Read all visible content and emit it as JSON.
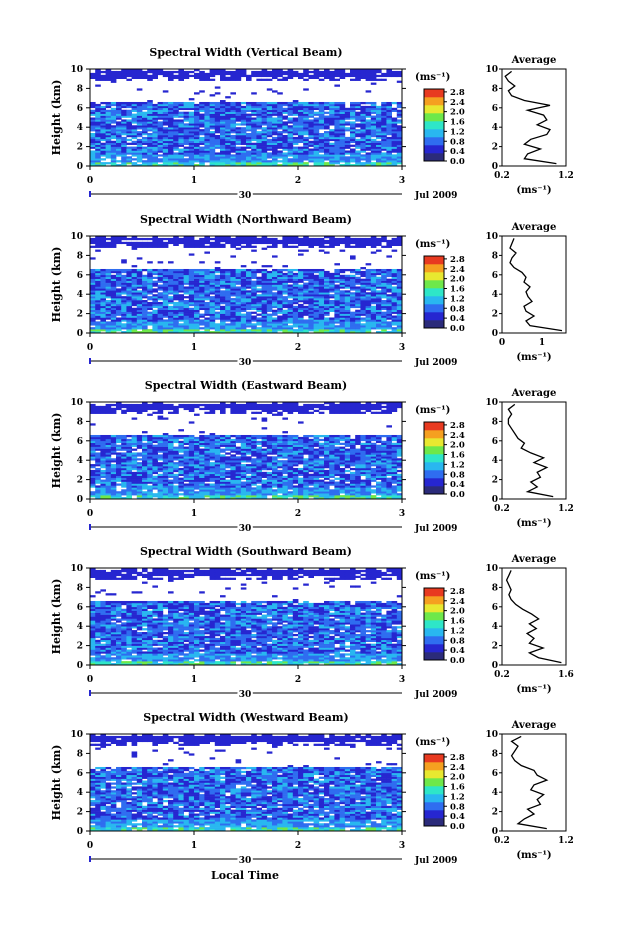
{
  "figure": {
    "xlabel": "Local Time",
    "colorbar_unit": "(ms⁻¹)",
    "colorbar_ticks": [
      "0.0",
      "0.4",
      "0.8",
      "1.2",
      "1.6",
      "2.0",
      "2.4",
      "2.8"
    ],
    "avg_title": "Average",
    "avg_unit": "(ms⁻¹)",
    "ylabel": "Height (km)",
    "date_day": "30",
    "date_month": "Jul 2009",
    "x_ticks": [
      "0",
      "1",
      "2",
      "3"
    ],
    "y_ticks": [
      "0",
      "2",
      "4",
      "6",
      "8",
      "10"
    ]
  },
  "colors": {
    "c0": "#2b2b7a",
    "c1": "#2626d0",
    "c2": "#2f6df0",
    "c3": "#29b7f0",
    "c4": "#2ee6c8",
    "c5": "#6ee84a",
    "c6": "#e8e830",
    "c7": "#f5a020",
    "c8": "#e83a20"
  },
  "chart_data": [
    {
      "type": "heatmap",
      "title": "Spectral Width (Vertical Beam)",
      "xlim": [
        0,
        3
      ],
      "ylim": [
        0,
        10
      ],
      "clim": [
        0,
        2.8
      ],
      "avg_xlim": [
        0.2,
        1.2
      ],
      "avg_ticks": [
        "0.2",
        "1.2"
      ],
      "avg_profile": {
        "height": [
          0.0,
          0.5,
          1.0,
          1.5,
          2.0,
          2.5,
          3.0,
          3.5,
          4.0,
          4.5,
          5.0,
          5.5,
          6.0,
          6.5,
          7.0,
          7.5,
          8.0,
          8.5,
          9.0,
          9.5
        ],
        "value": [
          1.05,
          0.55,
          0.6,
          0.8,
          0.55,
          0.65,
          0.9,
          0.95,
          0.75,
          0.9,
          0.85,
          0.6,
          0.95,
          0.55,
          0.35,
          0.3,
          0.4,
          0.3,
          0.25,
          0.35
        ]
      }
    },
    {
      "type": "heatmap",
      "title": "Spectral Width (Northward Beam)",
      "xlim": [
        0,
        3
      ],
      "ylim": [
        0,
        10
      ],
      "clim": [
        0,
        2.8
      ],
      "avg_xlim": [
        0,
        1.6
      ],
      "avg_ticks": [
        "0",
        "1"
      ],
      "avg_profile": {
        "height": [
          0.0,
          0.5,
          1.0,
          1.5,
          2.0,
          2.5,
          3.0,
          3.5,
          4.0,
          4.5,
          5.0,
          5.5,
          6.0,
          6.5,
          7.0,
          7.5,
          8.0,
          8.5,
          9.0,
          9.5
        ],
        "value": [
          1.5,
          0.7,
          0.6,
          0.8,
          0.6,
          0.55,
          0.75,
          0.65,
          0.6,
          0.7,
          0.55,
          0.6,
          0.5,
          0.3,
          0.2,
          0.25,
          0.35,
          0.2,
          0.25,
          0.3
        ]
      }
    },
    {
      "type": "heatmap",
      "title": "Spectral Width (Eastward Beam)",
      "xlim": [
        0,
        3
      ],
      "ylim": [
        0,
        10
      ],
      "clim": [
        0,
        2.8
      ],
      "avg_xlim": [
        0.2,
        1.2
      ],
      "avg_ticks": [
        "0.2",
        "1.2"
      ],
      "avg_profile": {
        "height": [
          0.0,
          0.5,
          1.0,
          1.5,
          2.0,
          2.5,
          3.0,
          3.5,
          4.0,
          4.5,
          5.0,
          5.5,
          6.0,
          6.5,
          7.0,
          7.5,
          8.0,
          8.5,
          9.0,
          9.5
        ],
        "value": [
          1.0,
          0.6,
          0.75,
          0.65,
          0.8,
          0.75,
          0.9,
          0.7,
          0.85,
          0.65,
          0.5,
          0.55,
          0.45,
          0.4,
          0.35,
          0.3,
          0.3,
          0.35,
          0.3,
          0.4
        ]
      }
    },
    {
      "type": "heatmap",
      "title": "Spectral Width (Southward Beam)",
      "xlim": [
        0,
        3
      ],
      "ylim": [
        0,
        10
      ],
      "clim": [
        0,
        2.8
      ],
      "avg_xlim": [
        0.2,
        1.6
      ],
      "avg_ticks": [
        "0.2",
        "1.6"
      ],
      "avg_profile": {
        "height": [
          0.0,
          0.5,
          1.0,
          1.5,
          2.0,
          2.5,
          3.0,
          3.5,
          4.0,
          4.5,
          5.0,
          5.5,
          6.0,
          6.5,
          7.0,
          7.5,
          8.0,
          8.5,
          9.0,
          9.5
        ],
        "value": [
          1.5,
          1.0,
          0.8,
          1.1,
          0.8,
          0.9,
          0.75,
          0.95,
          0.8,
          1.0,
          0.85,
          0.65,
          0.5,
          0.4,
          0.35,
          0.4,
          0.35,
          0.3,
          0.35,
          0.4
        ]
      }
    },
    {
      "type": "heatmap",
      "title": "Spectral Width (Westward Beam)",
      "xlim": [
        0,
        3
      ],
      "ylim": [
        0,
        10
      ],
      "clim": [
        0,
        2.8
      ],
      "avg_xlim": [
        0.2,
        1.2
      ],
      "avg_ticks": [
        "0.2",
        "1.2"
      ],
      "avg_profile": {
        "height": [
          0.0,
          0.5,
          1.0,
          1.5,
          2.0,
          2.5,
          3.0,
          3.5,
          4.0,
          4.5,
          5.0,
          5.5,
          6.0,
          6.5,
          7.0,
          7.5,
          8.0,
          8.5,
          9.0,
          9.5
        ],
        "value": [
          0.9,
          0.45,
          0.55,
          0.7,
          0.6,
          0.8,
          0.75,
          0.85,
          0.65,
          0.7,
          0.9,
          0.75,
          0.7,
          0.5,
          0.4,
          0.35,
          0.4,
          0.45,
          0.35,
          0.5
        ]
      }
    }
  ]
}
